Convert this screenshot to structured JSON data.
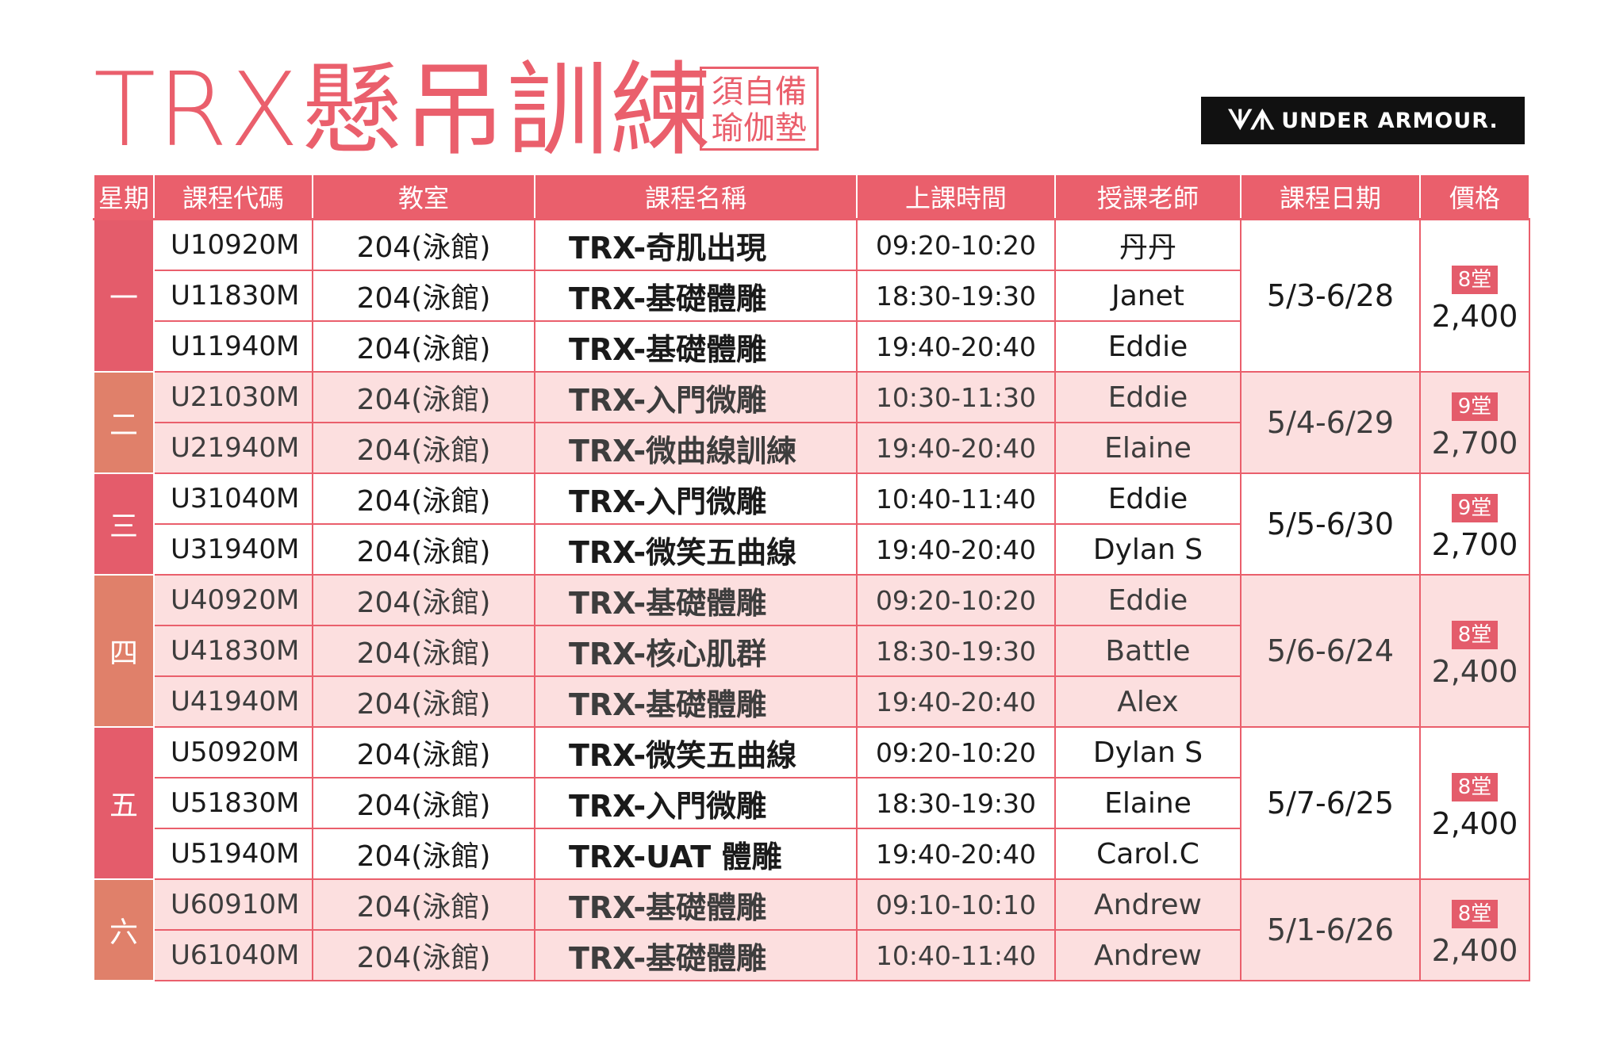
{
  "title": "TRX懸吊訓練",
  "note": [
    "須自備",
    "瑜伽墊"
  ],
  "brand": {
    "mark": "ᗐᗑ",
    "name": "UNDER ARMOUR."
  },
  "headers": [
    "星期",
    "課程代碼",
    "教室",
    "課程名稱",
    "上課時間",
    "授課老師",
    "課程日期",
    "價格"
  ],
  "groups": [
    {
      "day": "一",
      "day_color": "red",
      "row_style": "white",
      "date": "5/3-6/28",
      "sessions": "8堂",
      "price": "2,400",
      "rows": [
        {
          "code": "U10920M",
          "room": "204(泳館)",
          "name": "TRX-奇肌出現",
          "time": "09:20-10:20",
          "teacher": "丹丹"
        },
        {
          "code": "U11830M",
          "room": "204(泳館)",
          "name": "TRX-基礎體雕",
          "time": "18:30-19:30",
          "teacher": "Janet"
        },
        {
          "code": "U11940M",
          "room": "204(泳館)",
          "name": "TRX-基礎體雕",
          "time": "19:40-20:40",
          "teacher": "Eddie"
        }
      ]
    },
    {
      "day": "二",
      "day_color": "orange",
      "row_style": "pink",
      "date": "5/4-6/29",
      "sessions": "9堂",
      "price": "2,700",
      "rows": [
        {
          "code": "U21030M",
          "room": "204(泳館)",
          "name": "TRX-入門微雕",
          "time": "10:30-11:30",
          "teacher": "Eddie"
        },
        {
          "code": "U21940M",
          "room": "204(泳館)",
          "name": "TRX-微曲線訓練",
          "time": "19:40-20:40",
          "teacher": "Elaine"
        }
      ]
    },
    {
      "day": "三",
      "day_color": "red",
      "row_style": "white",
      "date": "5/5-6/30",
      "sessions": "9堂",
      "price": "2,700",
      "rows": [
        {
          "code": "U31040M",
          "room": "204(泳館)",
          "name": "TRX-入門微雕",
          "time": "10:40-11:40",
          "teacher": "Eddie"
        },
        {
          "code": "U31940M",
          "room": "204(泳館)",
          "name": "TRX-微笑五曲線",
          "time": "19:40-20:40",
          "teacher": "Dylan S"
        }
      ]
    },
    {
      "day": "四",
      "day_color": "orange",
      "row_style": "pink",
      "date": "5/6-6/24",
      "sessions": "8堂",
      "price": "2,400",
      "rows": [
        {
          "code": "U40920M",
          "room": "204(泳館)",
          "name": "TRX-基礎體雕",
          "time": "09:20-10:20",
          "teacher": "Eddie"
        },
        {
          "code": "U41830M",
          "room": "204(泳館)",
          "name": "TRX-核心肌群",
          "time": "18:30-19:30",
          "teacher": "Battle"
        },
        {
          "code": "U41940M",
          "room": "204(泳館)",
          "name": "TRX-基礎體雕",
          "time": "19:40-20:40",
          "teacher": "Alex"
        }
      ]
    },
    {
      "day": "五",
      "day_color": "red",
      "row_style": "white",
      "date": "5/7-6/25",
      "sessions": "8堂",
      "price": "2,400",
      "rows": [
        {
          "code": "U50920M",
          "room": "204(泳館)",
          "name": "TRX-微笑五曲線",
          "time": "09:20-10:20",
          "teacher": "Dylan S"
        },
        {
          "code": "U51830M",
          "room": "204(泳館)",
          "name": "TRX-入門微雕",
          "time": "18:30-19:30",
          "teacher": "Elaine"
        },
        {
          "code": "U51940M",
          "room": "204(泳館)",
          "name": "TRX-UAT 體雕",
          "time": "19:40-20:40",
          "teacher": "Carol.C"
        }
      ]
    },
    {
      "day": "六",
      "day_color": "orange",
      "row_style": "pink",
      "date": "5/1-6/26",
      "sessions": "8堂",
      "price": "2,400",
      "rows": [
        {
          "code": "U60910M",
          "room": "204(泳館)",
          "name": "TRX-基礎體雕",
          "time": "09:10-10:10",
          "teacher": "Andrew"
        },
        {
          "code": "U61040M",
          "room": "204(泳館)",
          "name": "TRX-基礎體雕",
          "time": "10:40-11:40",
          "teacher": "Andrew"
        }
      ]
    }
  ]
}
